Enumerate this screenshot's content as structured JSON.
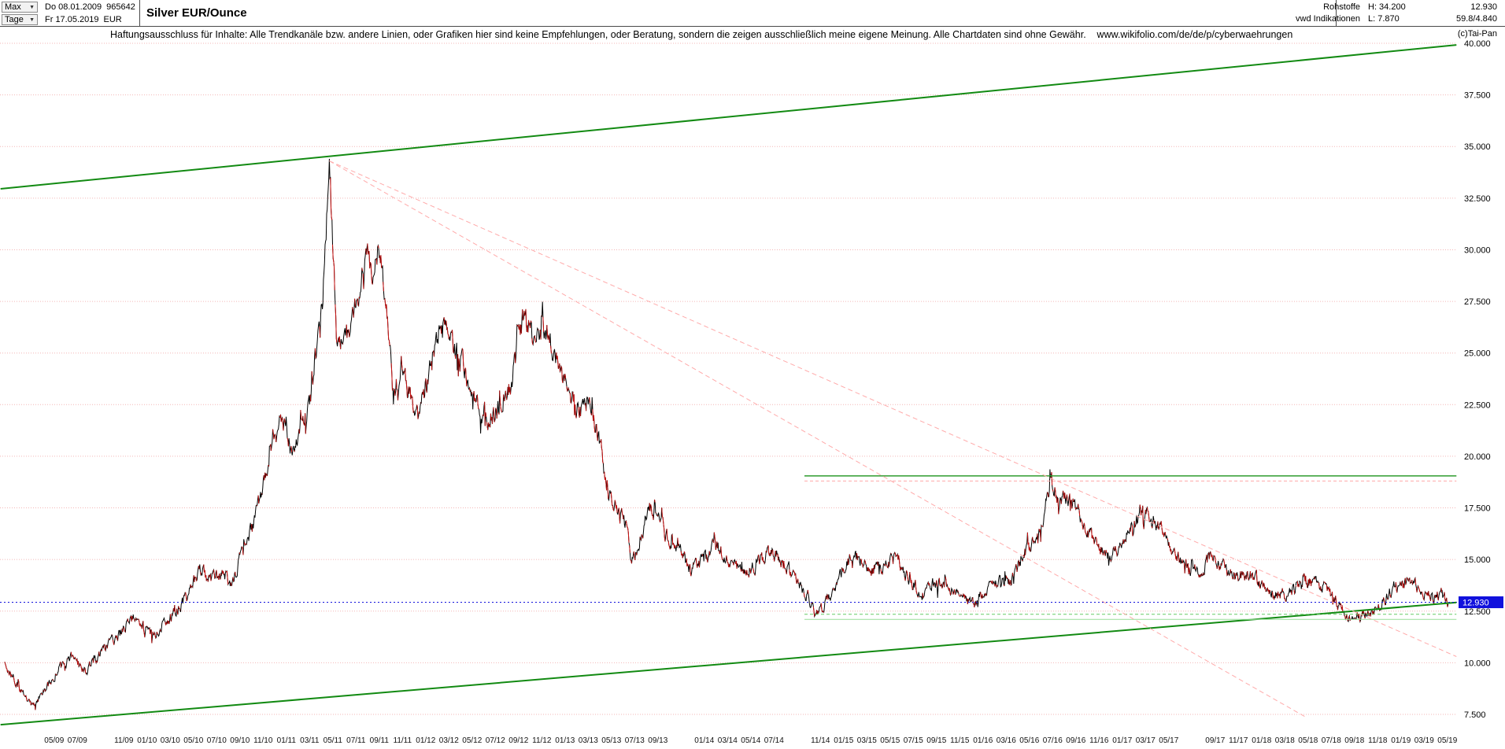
{
  "header": {
    "range_selector": {
      "label": "Max",
      "caret": "▼"
    },
    "period_selector": {
      "label": "Tage",
      "caret": "▼"
    },
    "start_date": "Do 08.01.2009",
    "instrument_id": "965642",
    "end_date": "Fr 17.05.2019",
    "currency": "EUR",
    "title": "Silver EUR/Ounce",
    "right": {
      "category": "Rohstoffe",
      "source": "vwd Indikationen",
      "high": "H: 34.200",
      "low": "L: 7.870",
      "last": "12.930",
      "range": "59.8/4.840",
      "copyright": "(c)Tai-Pan"
    }
  },
  "disclaimer": "Haftungsausschluss für Inhalte: Alle Trendkanäle bzw. andere Linien, oder Grafiken hier sind keine Empfehlungen, oder Beratung, sondern die zeigen ausschließlich meine eigene Meinung. Alle Chartdaten sind ohne Gewähr.    www.wikifolio.com/de/de/p/cyberwaehrungen",
  "chart_data": {
    "type": "line",
    "title": "Silver EUR/Ounce",
    "xlabel": "",
    "ylabel": "EUR",
    "x_range": [
      2008.99,
      2019.44
    ],
    "y_range": [
      6.5,
      41.0
    ],
    "grid": true,
    "legend": "none",
    "colors": {
      "grid": "#f3b6b6",
      "axis_text": "#000000"
    },
    "y_ticks": [
      {
        "value": 40.0,
        "label": "40.000"
      },
      {
        "value": 37.5,
        "label": "37.500"
      },
      {
        "value": 35.0,
        "label": "35.000"
      },
      {
        "value": 32.5,
        "label": "32.500"
      },
      {
        "value": 30.0,
        "label": "30.000"
      },
      {
        "value": 27.5,
        "label": "27.500"
      },
      {
        "value": 25.0,
        "label": "25.000"
      },
      {
        "value": 22.5,
        "label": "22.500"
      },
      {
        "value": 20.0,
        "label": "20.000"
      },
      {
        "value": 17.5,
        "label": "17.500"
      },
      {
        "value": 15.0,
        "label": "15.000"
      },
      {
        "value": 12.5,
        "label": "12.500"
      },
      {
        "value": 10.0,
        "label": "10.000"
      },
      {
        "value": 7.5,
        "label": "7.500"
      }
    ],
    "x_ticks": [
      "05/09",
      "07/09",
      "11/09",
      "01/10",
      "03/10",
      "05/10",
      "07/10",
      "09/10",
      "11/10",
      "01/11",
      "03/11",
      "05/11",
      "07/11",
      "09/11",
      "11/11",
      "01/12",
      "03/12",
      "05/12",
      "07/12",
      "09/12",
      "11/12",
      "01/13",
      "03/13",
      "05/13",
      "07/13",
      "09/13",
      "01/14",
      "03/14",
      "05/14",
      "07/14",
      "11/14",
      "01/15",
      "03/15",
      "05/15",
      "07/15",
      "09/15",
      "11/15",
      "01/16",
      "03/16",
      "05/16",
      "07/16",
      "09/16",
      "11/16",
      "01/17",
      "03/17",
      "05/17",
      "09/17",
      "11/17",
      "01/18",
      "03/18",
      "05/18",
      "07/18",
      "09/18",
      "11/18",
      "01/19",
      "03/19",
      "05/19"
    ],
    "series": {
      "name": "Silver EUR/Ounce daily",
      "color": "#000000",
      "down_color": "#cc1111",
      "anchors": [
        [
          2009.02,
          10.0
        ],
        [
          2009.1,
          9.0
        ],
        [
          2009.22,
          7.9
        ],
        [
          2009.3,
          8.6
        ],
        [
          2009.4,
          9.6
        ],
        [
          2009.5,
          10.3
        ],
        [
          2009.6,
          9.6
        ],
        [
          2009.7,
          10.4
        ],
        [
          2009.8,
          11.1
        ],
        [
          2009.95,
          12.2
        ],
        [
          2010.08,
          11.3
        ],
        [
          2010.2,
          12.1
        ],
        [
          2010.33,
          13.2
        ],
        [
          2010.42,
          14.6
        ],
        [
          2010.5,
          14.0
        ],
        [
          2010.58,
          14.3
        ],
        [
          2010.65,
          13.8
        ],
        [
          2010.72,
          15.3
        ],
        [
          2010.8,
          16.6
        ],
        [
          2010.9,
          19.2
        ],
        [
          2011.0,
          21.8
        ],
        [
          2011.08,
          20.3
        ],
        [
          2011.16,
          21.5
        ],
        [
          2011.24,
          23.5
        ],
        [
          2011.3,
          27.5
        ],
        [
          2011.35,
          34.2
        ],
        [
          2011.4,
          26.0
        ],
        [
          2011.45,
          25.2
        ],
        [
          2011.52,
          26.8
        ],
        [
          2011.58,
          28.5
        ],
        [
          2011.62,
          30.2
        ],
        [
          2011.66,
          28.0
        ],
        [
          2011.7,
          30.6
        ],
        [
          2011.76,
          27.5
        ],
        [
          2011.81,
          22.8
        ],
        [
          2011.87,
          24.6
        ],
        [
          2011.93,
          23.2
        ],
        [
          2011.99,
          21.8
        ],
        [
          2012.07,
          24.3
        ],
        [
          2012.15,
          26.6
        ],
        [
          2012.22,
          25.6
        ],
        [
          2012.3,
          24.6
        ],
        [
          2012.4,
          22.6
        ],
        [
          2012.5,
          21.8
        ],
        [
          2012.58,
          22.4
        ],
        [
          2012.65,
          23.4
        ],
        [
          2012.74,
          26.8
        ],
        [
          2012.82,
          25.9
        ],
        [
          2012.9,
          26.3
        ],
        [
          2012.97,
          24.8
        ],
        [
          2013.05,
          23.6
        ],
        [
          2013.13,
          22.2
        ],
        [
          2013.22,
          22.6
        ],
        [
          2013.3,
          20.5
        ],
        [
          2013.34,
          18.2
        ],
        [
          2013.42,
          17.5
        ],
        [
          2013.48,
          16.8
        ],
        [
          2013.52,
          14.9
        ],
        [
          2013.58,
          15.7
        ],
        [
          2013.64,
          17.6
        ],
        [
          2013.72,
          16.8
        ],
        [
          2013.78,
          16.0
        ],
        [
          2013.85,
          15.6
        ],
        [
          2013.95,
          14.5
        ],
        [
          2014.03,
          14.9
        ],
        [
          2014.12,
          15.7
        ],
        [
          2014.22,
          15.0
        ],
        [
          2014.33,
          14.3
        ],
        [
          2014.43,
          14.8
        ],
        [
          2014.52,
          15.5
        ],
        [
          2014.62,
          14.7
        ],
        [
          2014.72,
          13.8
        ],
        [
          2014.8,
          13.0
        ],
        [
          2014.86,
          12.4
        ],
        [
          2014.95,
          13.3
        ],
        [
          2015.04,
          14.7
        ],
        [
          2015.12,
          15.2
        ],
        [
          2015.22,
          14.5
        ],
        [
          2015.32,
          14.7
        ],
        [
          2015.42,
          15.1
        ],
        [
          2015.5,
          14.2
        ],
        [
          2015.6,
          13.3
        ],
        [
          2015.7,
          13.9
        ],
        [
          2015.8,
          13.6
        ],
        [
          2015.9,
          13.1
        ],
        [
          2015.98,
          12.9
        ],
        [
          2016.06,
          13.6
        ],
        [
          2016.16,
          13.9
        ],
        [
          2016.25,
          14.0
        ],
        [
          2016.33,
          15.3
        ],
        [
          2016.42,
          15.8
        ],
        [
          2016.48,
          17.2
        ],
        [
          2016.53,
          18.9
        ],
        [
          2016.58,
          17.8
        ],
        [
          2016.64,
          18.1
        ],
        [
          2016.72,
          17.4
        ],
        [
          2016.8,
          16.2
        ],
        [
          2016.88,
          15.6
        ],
        [
          2016.96,
          15.1
        ],
        [
          2017.04,
          15.9
        ],
        [
          2017.12,
          16.7
        ],
        [
          2017.2,
          17.4
        ],
        [
          2017.28,
          16.8
        ],
        [
          2017.36,
          15.8
        ],
        [
          2017.45,
          15.1
        ],
        [
          2017.53,
          14.6
        ],
        [
          2017.6,
          14.3
        ],
        [
          2017.67,
          15.1
        ],
        [
          2017.75,
          14.7
        ],
        [
          2017.83,
          14.3
        ],
        [
          2017.92,
          14.2
        ],
        [
          2018.0,
          14.1
        ],
        [
          2018.08,
          13.5
        ],
        [
          2018.17,
          13.3
        ],
        [
          2018.25,
          13.4
        ],
        [
          2018.33,
          14.0
        ],
        [
          2018.42,
          13.9
        ],
        [
          2018.5,
          13.7
        ],
        [
          2018.58,
          12.9
        ],
        [
          2018.68,
          12.1
        ],
        [
          2018.76,
          12.3
        ],
        [
          2018.84,
          12.5
        ],
        [
          2018.92,
          13.1
        ],
        [
          2018.99,
          13.6
        ],
        [
          2019.06,
          13.8
        ],
        [
          2019.12,
          13.9
        ],
        [
          2019.2,
          13.5
        ],
        [
          2019.27,
          13.2
        ],
        [
          2019.33,
          13.3
        ],
        [
          2019.38,
          12.93
        ]
      ]
    },
    "trend_lines": [
      {
        "name": "channel-top",
        "x1": 2008.99,
        "y1": 32.95,
        "x2": 2019.44,
        "y2": 39.92,
        "color": "#128a12",
        "width": 2,
        "dash": null
      },
      {
        "name": "channel-bottom",
        "x1": 2008.99,
        "y1": 7.0,
        "x2": 2019.44,
        "y2": 12.92,
        "color": "#128a12",
        "width": 2,
        "dash": null
      },
      {
        "name": "resistance-19-green",
        "x1": 2014.76,
        "y1": 19.05,
        "x2": 2019.44,
        "y2": 19.05,
        "color": "#2e9b2e",
        "width": 1.5,
        "dash": null
      },
      {
        "name": "resistance-19-pink",
        "x1": 2014.76,
        "y1": 18.8,
        "x2": 2019.44,
        "y2": 18.8,
        "color": "#ffaaaa",
        "width": 1,
        "dash": "4 3"
      },
      {
        "name": "support-12-upper",
        "x1": 2014.76,
        "y1": 12.35,
        "x2": 2019.44,
        "y2": 12.35,
        "color": "#66cc66",
        "width": 1,
        "dash": "4 3"
      },
      {
        "name": "support-12-lower",
        "x1": 2014.76,
        "y1": 12.1,
        "x2": 2019.44,
        "y2": 12.1,
        "color": "#99dd99",
        "width": 1,
        "dash": null
      },
      {
        "name": "fan-line-1",
        "x1": 2011.35,
        "y1": 34.3,
        "x2": 2019.44,
        "y2": 10.3,
        "color": "#ffaaaa",
        "width": 1,
        "dash": "6 4"
      },
      {
        "name": "fan-line-2",
        "x1": 2011.35,
        "y1": 34.3,
        "x2": 2018.35,
        "y2": 7.4,
        "color": "#ffaaaa",
        "width": 1,
        "dash": "6 4"
      }
    ],
    "current_price": {
      "value": 12.93,
      "label": "12.930",
      "color": "#1111dd"
    }
  }
}
